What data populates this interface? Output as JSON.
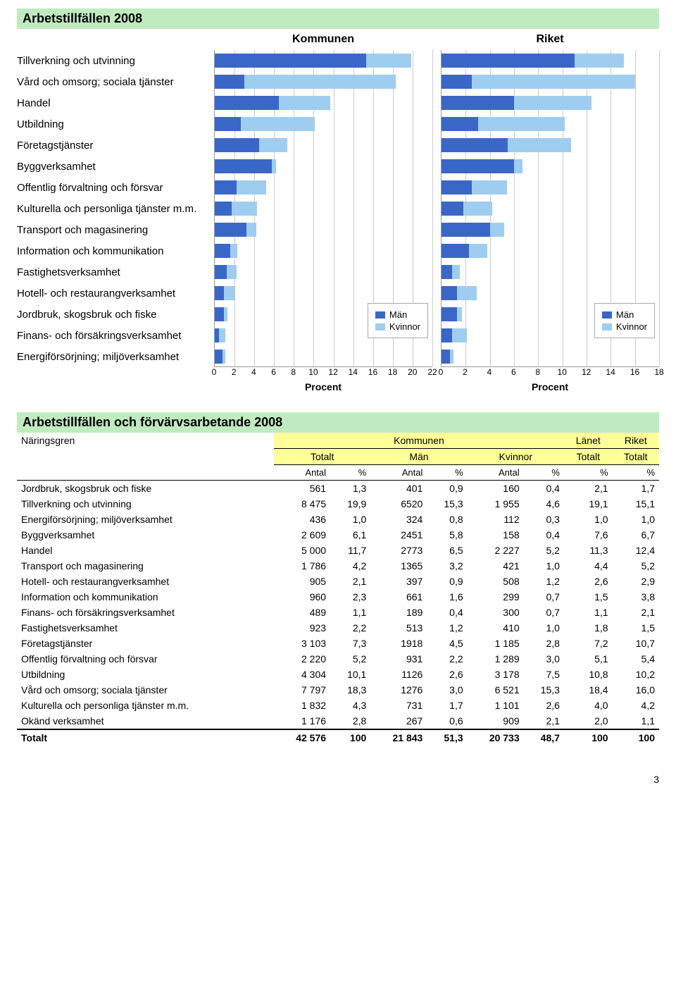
{
  "colors": {
    "men": "#3a67c7",
    "women": "#9fcdf0",
    "panel_bg": "#c0ebc0",
    "tbl_hdr_bg": "#ffff99",
    "grid": "#cccccc",
    "axis": "#999999"
  },
  "chart": {
    "title": "Arbetstillfällen 2008",
    "kommunen_label": "Kommunen",
    "riket_label": "Riket",
    "x_label": "Procent",
    "legend_men": "Män",
    "legend_women": "Kvinnor",
    "categories": [
      "Tillverkning och utvinning",
      "Vård och omsorg; sociala tjänster",
      "Handel",
      "Utbildning",
      "Företagstjänster",
      "Byggverksamhet",
      "Offentlig förvaltning och försvar",
      "Kulturella och personliga tjänster m.m.",
      "Transport och magasinering",
      "Information och kommunikation",
      "Fastighetsverksamhet",
      "Hotell- och restaurangverksamhet",
      "Jordbruk, skogsbruk och fiske",
      "Finans- och försäkringsverksamhet",
      "Energiförsörjning; miljöverksamhet"
    ],
    "kommunen": {
      "xmax": 22,
      "tick_step": 2,
      "men": [
        15.3,
        3.0,
        6.5,
        2.6,
        4.5,
        5.8,
        2.2,
        1.7,
        3.2,
        1.6,
        1.2,
        0.9,
        0.9,
        0.4,
        0.8
      ],
      "women": [
        4.6,
        15.3,
        5.2,
        7.5,
        2.8,
        0.4,
        3.0,
        2.6,
        1.0,
        0.7,
        1.0,
        1.2,
        0.4,
        0.7,
        0.3
      ]
    },
    "riket": {
      "xmax": 18,
      "tick_step": 2,
      "men": [
        11.0,
        2.5,
        6.0,
        3.0,
        5.5,
        6.0,
        2.5,
        1.8,
        4.0,
        2.3,
        0.9,
        1.3,
        1.3,
        0.9,
        0.7
      ],
      "women": [
        4.1,
        13.5,
        6.4,
        7.2,
        5.2,
        0.7,
        2.9,
        2.4,
        1.2,
        1.5,
        0.6,
        1.6,
        0.4,
        1.2,
        0.3
      ]
    }
  },
  "table": {
    "title": "Arbetstillfällen och förvärvsarbetande 2008",
    "col0": "Näringsgren",
    "grp_kommunen": "Kommunen",
    "grp_lanet": "Länet",
    "grp_riket": "Riket",
    "sub_totalt": "Totalt",
    "sub_men": "Män",
    "sub_women": "Kvinnor",
    "u_antal": "Antal",
    "u_pct": "%",
    "rows": [
      {
        "name": "Jordbruk, skogsbruk och fiske",
        "tot_a": "561",
        "tot_p": "1,3",
        "m_a": "401",
        "m_p": "0,9",
        "w_a": "160",
        "w_p": "0,4",
        "lan": "2,1",
        "rik": "1,7"
      },
      {
        "name": "Tillverkning och utvinning",
        "tot_a": "8 475",
        "tot_p": "19,9",
        "m_a": "6520",
        "m_p": "15,3",
        "w_a": "1 955",
        "w_p": "4,6",
        "lan": "19,1",
        "rik": "15,1"
      },
      {
        "name": "Energiförsörjning; miljöverksamhet",
        "tot_a": "436",
        "tot_p": "1,0",
        "m_a": "324",
        "m_p": "0,8",
        "w_a": "112",
        "w_p": "0,3",
        "lan": "1,0",
        "rik": "1,0"
      },
      {
        "name": "Byggverksamhet",
        "tot_a": "2 609",
        "tot_p": "6,1",
        "m_a": "2451",
        "m_p": "5,8",
        "w_a": "158",
        "w_p": "0,4",
        "lan": "7,6",
        "rik": "6,7"
      },
      {
        "name": "Handel",
        "tot_a": "5 000",
        "tot_p": "11,7",
        "m_a": "2773",
        "m_p": "6,5",
        "w_a": "2 227",
        "w_p": "5,2",
        "lan": "11,3",
        "rik": "12,4"
      },
      {
        "name": "Transport och magasinering",
        "tot_a": "1 786",
        "tot_p": "4,2",
        "m_a": "1365",
        "m_p": "3,2",
        "w_a": "421",
        "w_p": "1,0",
        "lan": "4,4",
        "rik": "5,2"
      },
      {
        "name": "Hotell- och restaurangverksamhet",
        "tot_a": "905",
        "tot_p": "2,1",
        "m_a": "397",
        "m_p": "0,9",
        "w_a": "508",
        "w_p": "1,2",
        "lan": "2,6",
        "rik": "2,9"
      },
      {
        "name": "Information och kommunikation",
        "tot_a": "960",
        "tot_p": "2,3",
        "m_a": "661",
        "m_p": "1,6",
        "w_a": "299",
        "w_p": "0,7",
        "lan": "1,5",
        "rik": "3,8"
      },
      {
        "name": "Finans- och försäkringsverksamhet",
        "tot_a": "489",
        "tot_p": "1,1",
        "m_a": "189",
        "m_p": "0,4",
        "w_a": "300",
        "w_p": "0,7",
        "lan": "1,1",
        "rik": "2,1"
      },
      {
        "name": "Fastighetsverksamhet",
        "tot_a": "923",
        "tot_p": "2,2",
        "m_a": "513",
        "m_p": "1,2",
        "w_a": "410",
        "w_p": "1,0",
        "lan": "1,8",
        "rik": "1,5"
      },
      {
        "name": "Företagstjänster",
        "tot_a": "3 103",
        "tot_p": "7,3",
        "m_a": "1918",
        "m_p": "4,5",
        "w_a": "1 185",
        "w_p": "2,8",
        "lan": "7,2",
        "rik": "10,7"
      },
      {
        "name": "Offentlig förvaltning och försvar",
        "tot_a": "2 220",
        "tot_p": "5,2",
        "m_a": "931",
        "m_p": "2,2",
        "w_a": "1 289",
        "w_p": "3,0",
        "lan": "5,1",
        "rik": "5,4"
      },
      {
        "name": "Utbildning",
        "tot_a": "4 304",
        "tot_p": "10,1",
        "m_a": "1126",
        "m_p": "2,6",
        "w_a": "3 178",
        "w_p": "7,5",
        "lan": "10,8",
        "rik": "10,2"
      },
      {
        "name": "Vård och omsorg; sociala tjänster",
        "tot_a": "7 797",
        "tot_p": "18,3",
        "m_a": "1276",
        "m_p": "3,0",
        "w_a": "6 521",
        "w_p": "15,3",
        "lan": "18,4",
        "rik": "16,0"
      },
      {
        "name": "Kulturella och personliga tjänster m.m.",
        "tot_a": "1 832",
        "tot_p": "4,3",
        "m_a": "731",
        "m_p": "1,7",
        "w_a": "1 101",
        "w_p": "2,6",
        "lan": "4,0",
        "rik": "4,2"
      },
      {
        "name": "Okänd verksamhet",
        "tot_a": "1 176",
        "tot_p": "2,8",
        "m_a": "267",
        "m_p": "0,6",
        "w_a": "909",
        "w_p": "2,1",
        "lan": "2,0",
        "rik": "1,1"
      }
    ],
    "total_label": "Totalt",
    "total": {
      "tot_a": "42 576",
      "tot_p": "100",
      "m_a": "21 843",
      "m_p": "51,3",
      "w_a": "20 733",
      "w_p": "48,7",
      "lan": "100",
      "rik": "100"
    }
  },
  "page_number": "3"
}
